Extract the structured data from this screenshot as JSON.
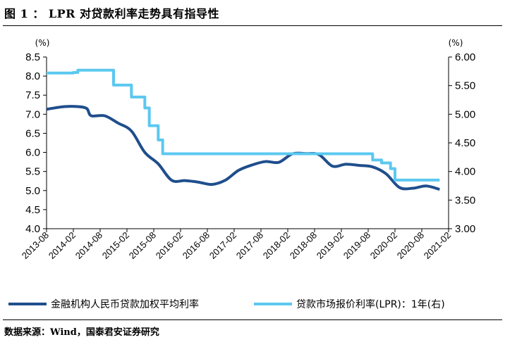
{
  "header": {
    "title": "图 1 ： LPR 对贷款利率走势具有指导性"
  },
  "footer": {
    "source": "数据来源：Wind，国泰君安证券研究"
  },
  "chart_data": {
    "type": "line",
    "title": "LPR 对贷款利率走势具有指导性",
    "left_axis": {
      "unit": "(%)",
      "ylim": [
        4.0,
        8.5
      ],
      "ticks": [
        "4.0",
        "4.5",
        "5.0",
        "5.5",
        "6.0",
        "6.5",
        "7.0",
        "7.5",
        "8.0",
        "8.5"
      ]
    },
    "right_axis": {
      "unit": "(%)",
      "ylim": [
        3.0,
        6.0
      ],
      "ticks": [
        "3.00",
        "3.50",
        "4.00",
        "4.50",
        "5.00",
        "5.50",
        "6.00"
      ]
    },
    "x_ticks": [
      "2013-08",
      "2014-02",
      "2014-08",
      "2015-02",
      "2015-08",
      "2016-02",
      "2016-08",
      "2017-02",
      "2017-08",
      "2018-02",
      "2018-08",
      "2019-02",
      "2019-08",
      "2020-02",
      "2020-08",
      "2021-02"
    ],
    "x_range": [
      "2013-08",
      "2021-02"
    ],
    "series": [
      {
        "name": "金融机构人民币贷款加权平均利率",
        "axis": "left",
        "color": "#1f4e8c",
        "style": "smooth",
        "points": [
          [
            "2013-08",
            7.13
          ],
          [
            "2013-09",
            7.15
          ],
          [
            "2013-12",
            7.2
          ],
          [
            "2014-03",
            7.2
          ],
          [
            "2014-05",
            7.15
          ],
          [
            "2014-06",
            6.96
          ],
          [
            "2014-09",
            6.96
          ],
          [
            "2014-12",
            6.77
          ],
          [
            "2015-03",
            6.56
          ],
          [
            "2015-06",
            6.0
          ],
          [
            "2015-09",
            5.7
          ],
          [
            "2015-12",
            5.27
          ],
          [
            "2016-03",
            5.26
          ],
          [
            "2016-06",
            5.22
          ],
          [
            "2016-09",
            5.16
          ],
          [
            "2016-12",
            5.27
          ],
          [
            "2017-03",
            5.53
          ],
          [
            "2017-06",
            5.67
          ],
          [
            "2017-09",
            5.76
          ],
          [
            "2017-12",
            5.74
          ],
          [
            "2018-03",
            5.96
          ],
          [
            "2018-06",
            5.97
          ],
          [
            "2018-09",
            5.94
          ],
          [
            "2018-12",
            5.64
          ],
          [
            "2019-03",
            5.69
          ],
          [
            "2019-06",
            5.66
          ],
          [
            "2019-09",
            5.62
          ],
          [
            "2019-12",
            5.44
          ],
          [
            "2020-03",
            5.08
          ],
          [
            "2020-06",
            5.06
          ],
          [
            "2020-09",
            5.12
          ],
          [
            "2020-12",
            5.03
          ]
        ]
      },
      {
        "name": "贷款市场报价利率(LPR)：1年(右)",
        "axis": "right",
        "color": "#5bc8f0",
        "style": "step",
        "points": [
          [
            "2013-08",
            5.72
          ],
          [
            "2014-02",
            5.73
          ],
          [
            "2014-03",
            5.77
          ],
          [
            "2014-11",
            5.51
          ],
          [
            "2015-02",
            5.51
          ],
          [
            "2015-03",
            5.3
          ],
          [
            "2015-06",
            5.11
          ],
          [
            "2015-07",
            4.8
          ],
          [
            "2015-09",
            4.55
          ],
          [
            "2015-10",
            4.31
          ],
          [
            "2019-08",
            4.31
          ],
          [
            "2019-09",
            4.2
          ],
          [
            "2019-11",
            4.15
          ],
          [
            "2020-01",
            4.05
          ],
          [
            "2020-02",
            3.85
          ],
          [
            "2020-12",
            3.85
          ]
        ]
      }
    ],
    "legend_position": "bottom",
    "grid": false
  }
}
